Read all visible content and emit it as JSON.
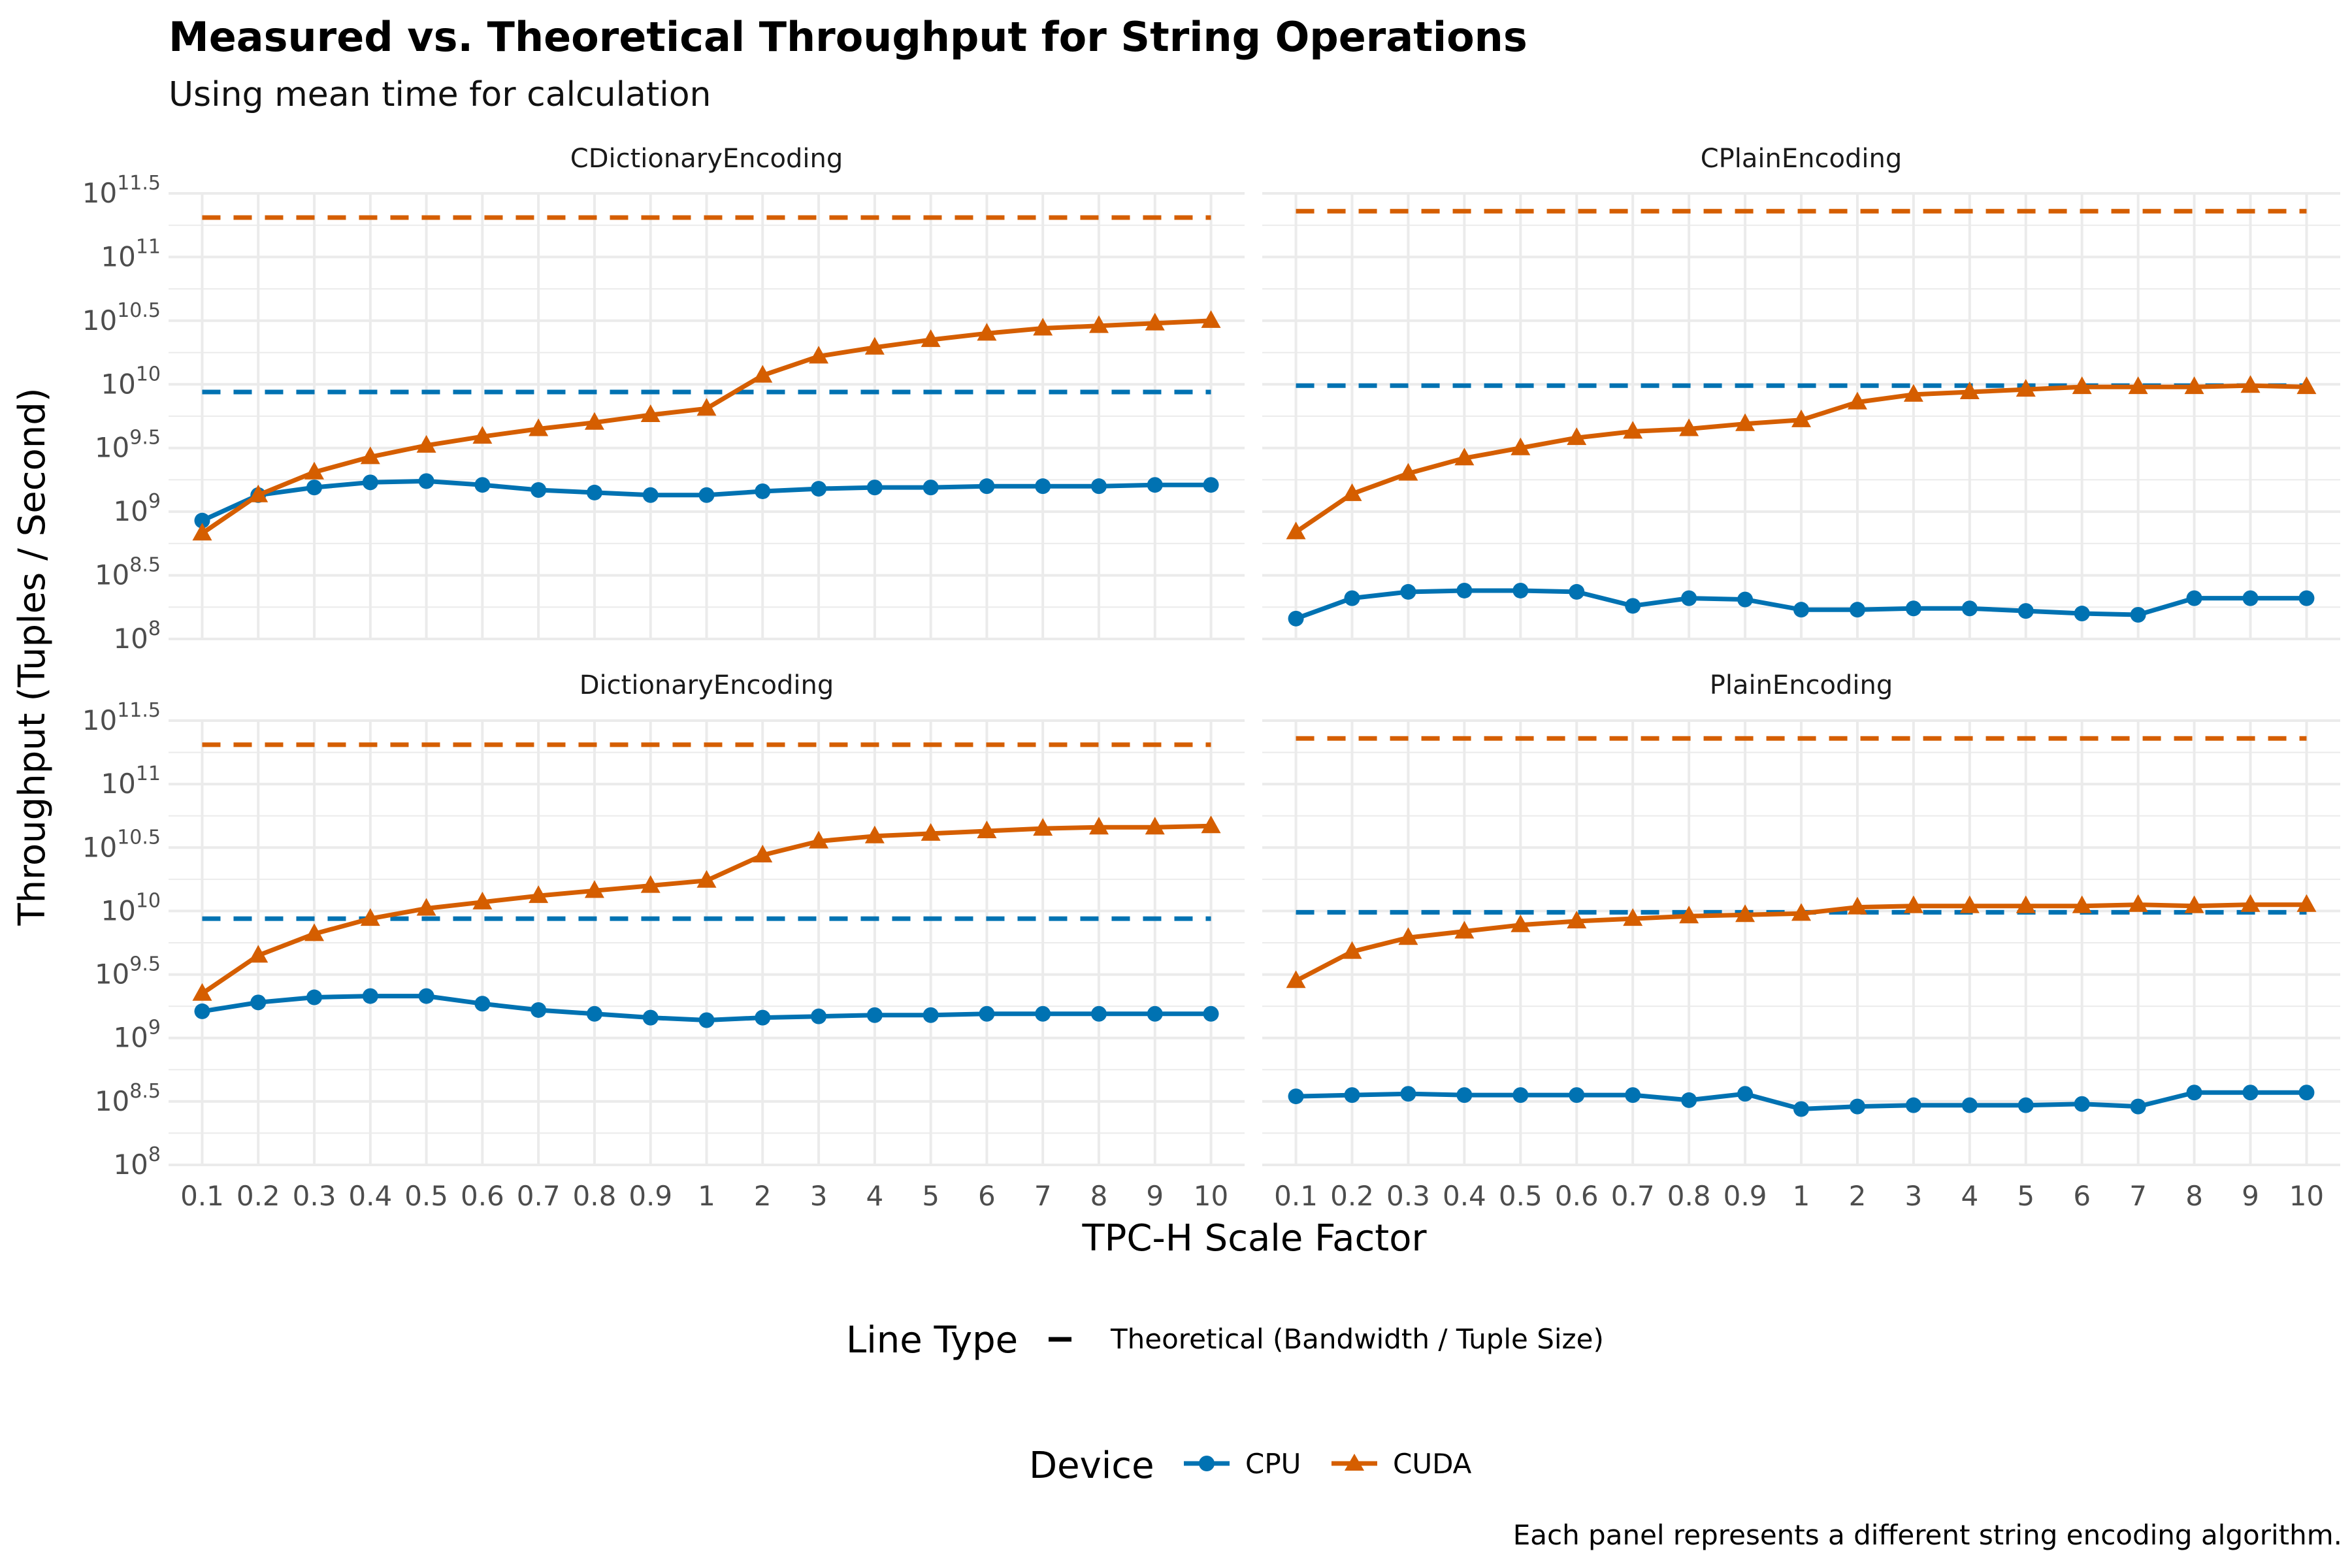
{
  "title": "Measured vs. Theoretical Throughput for String Operations",
  "subtitle": "Using mean time for calculation",
  "caption": "Each panel represents a different string encoding algorithm.",
  "colors": {
    "CPU": "#0072B2",
    "CUDA": "#D55E00",
    "grid": "#EBEBEB"
  },
  "chart_data": {
    "type": "line",
    "facets": [
      "CDictionaryEncoding",
      "CPlainEncoding",
      "DictionaryEncoding",
      "PlainEncoding"
    ],
    "xlabel": "TPC-H Scale Factor",
    "ylabel": "Throughput (Tuples / Second)",
    "y_scale": "log10",
    "ylim_exponent": [
      8,
      11.5
    ],
    "y_tick_exponents": [
      "8",
      "8.5",
      "9",
      "9.5",
      "10",
      "10.5",
      "11",
      "11.5"
    ],
    "categories": [
      "0.1",
      "0.2",
      "0.3",
      "0.4",
      "0.5",
      "0.6",
      "0.7",
      "0.8",
      "0.9",
      "1",
      "2",
      "3",
      "4",
      "5",
      "6",
      "7",
      "8",
      "9",
      "10"
    ],
    "legend": {
      "linetype_title": "Line Type",
      "linetype_label": "Theoretical (Bandwidth / Tuple Size)",
      "device_title": "Device",
      "devices": [
        "CPU",
        "CUDA"
      ]
    },
    "panels": [
      {
        "name": "CDictionaryEncoding",
        "series": [
          {
            "name": "CPU",
            "log10_values": [
              8.93,
              9.13,
              9.19,
              9.23,
              9.24,
              9.21,
              9.17,
              9.15,
              9.13,
              9.13,
              9.16,
              9.18,
              9.19,
              9.19,
              9.2,
              9.2,
              9.2,
              9.21,
              9.21
            ]
          },
          {
            "name": "CUDA",
            "log10_values": [
              8.83,
              9.13,
              9.31,
              9.43,
              9.52,
              9.59,
              9.65,
              9.7,
              9.76,
              9.81,
              10.07,
              10.22,
              10.29,
              10.35,
              10.4,
              10.44,
              10.46,
              10.48,
              10.5
            ]
          }
        ],
        "theoretical": [
          {
            "name": "CPU",
            "log10_value": 9.94
          },
          {
            "name": "CUDA",
            "log10_value": 11.31
          }
        ]
      },
      {
        "name": "CPlainEncoding",
        "series": [
          {
            "name": "CPU",
            "log10_values": [
              8.16,
              8.32,
              8.37,
              8.38,
              8.38,
              8.37,
              8.26,
              8.32,
              8.31,
              8.23,
              8.23,
              8.24,
              8.24,
              8.22,
              8.2,
              8.19,
              8.32,
              8.32,
              8.32
            ]
          },
          {
            "name": "CUDA",
            "log10_values": [
              8.84,
              9.14,
              9.3,
              9.42,
              9.5,
              9.58,
              9.63,
              9.65,
              9.69,
              9.72,
              9.86,
              9.92,
              9.94,
              9.96,
              9.98,
              9.98,
              9.98,
              9.99,
              9.98
            ]
          }
        ],
        "theoretical": [
          {
            "name": "CPU",
            "log10_value": 9.99
          },
          {
            "name": "CUDA",
            "log10_value": 11.36
          }
        ]
      },
      {
        "name": "DictionaryEncoding",
        "series": [
          {
            "name": "CPU",
            "log10_values": [
              9.21,
              9.28,
              9.32,
              9.33,
              9.33,
              9.27,
              9.22,
              9.19,
              9.16,
              9.14,
              9.16,
              9.17,
              9.18,
              9.18,
              9.19,
              9.19,
              9.19,
              9.19,
              9.19
            ]
          },
          {
            "name": "CUDA",
            "log10_values": [
              9.35,
              9.65,
              9.82,
              9.94,
              10.02,
              10.07,
              10.12,
              10.16,
              10.2,
              10.24,
              10.44,
              10.55,
              10.59,
              10.61,
              10.63,
              10.65,
              10.66,
              10.66,
              10.67
            ]
          }
        ],
        "theoretical": [
          {
            "name": "CPU",
            "log10_value": 9.94
          },
          {
            "name": "CUDA",
            "log10_value": 11.31
          }
        ]
      },
      {
        "name": "PlainEncoding",
        "series": [
          {
            "name": "CPU",
            "log10_values": [
              8.54,
              8.55,
              8.56,
              8.55,
              8.55,
              8.55,
              8.55,
              8.51,
              8.56,
              8.44,
              8.46,
              8.47,
              8.47,
              8.47,
              8.48,
              8.46,
              8.57,
              8.57,
              8.57
            ]
          },
          {
            "name": "CUDA",
            "log10_values": [
              9.45,
              9.68,
              9.79,
              9.84,
              9.89,
              9.92,
              9.94,
              9.96,
              9.97,
              9.98,
              10.03,
              10.04,
              10.04,
              10.04,
              10.04,
              10.05,
              10.04,
              10.05,
              10.05
            ]
          }
        ],
        "theoretical": [
          {
            "name": "CPU",
            "log10_value": 9.99
          },
          {
            "name": "CUDA",
            "log10_value": 11.36
          }
        ]
      }
    ]
  }
}
